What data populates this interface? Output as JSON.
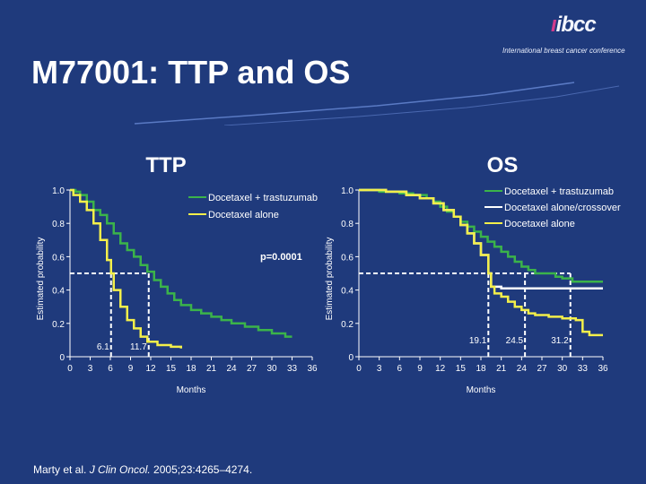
{
  "slide": {
    "title": "M77001: TTP and OS",
    "logo_text": "ibcc",
    "logo_subtitle": "International breast cancer conference",
    "citation_authors": "Marty et al. ",
    "citation_journal": "J Clin Oncol.",
    "citation_rest": " 2005;23:4265–4274."
  },
  "chart_data": [
    {
      "type": "line",
      "panel_title": "TTP",
      "xlabel": "Months",
      "ylabel": "Estimated probability",
      "xlim": [
        0,
        36
      ],
      "ylim": [
        0,
        1.0
      ],
      "x_ticks": [
        0,
        3,
        6,
        9,
        12,
        15,
        18,
        21,
        24,
        27,
        30,
        33,
        36
      ],
      "y_ticks": [
        {
          "v": 0,
          "label": "0"
        },
        {
          "v": 0.2,
          "label": "0.2"
        },
        {
          "v": 0.4,
          "label": "0.4"
        },
        {
          "v": 0.6,
          "label": "0.6"
        },
        {
          "v": 0.8,
          "label": "0.8"
        },
        {
          "v": 1.0,
          "label": "1.0"
        }
      ],
      "annotation": "p=0.0001",
      "medians": [
        {
          "x": 6.1,
          "label": "6.1"
        },
        {
          "x": 11.7,
          "label": "11.7"
        }
      ],
      "legend_position": "top-right",
      "series": [
        {
          "name": "Docetaxel + trastuzumab",
          "color": "#3bb34a",
          "points": [
            [
              0,
              1.0
            ],
            [
              0.8,
              0.99
            ],
            [
              1.5,
              0.97
            ],
            [
              2.5,
              0.93
            ],
            [
              3.5,
              0.88
            ],
            [
              4.5,
              0.85
            ],
            [
              5.5,
              0.8
            ],
            [
              6.5,
              0.74
            ],
            [
              7.5,
              0.68
            ],
            [
              8.5,
              0.64
            ],
            [
              9.5,
              0.6
            ],
            [
              10.5,
              0.55
            ],
            [
              11.5,
              0.51
            ],
            [
              12.5,
              0.46
            ],
            [
              13.5,
              0.42
            ],
            [
              14.5,
              0.38
            ],
            [
              15.5,
              0.34
            ],
            [
              16.5,
              0.31
            ],
            [
              18,
              0.28
            ],
            [
              19.5,
              0.26
            ],
            [
              21,
              0.24
            ],
            [
              22.5,
              0.22
            ],
            [
              24,
              0.2
            ],
            [
              26,
              0.18
            ],
            [
              28,
              0.16
            ],
            [
              30,
              0.14
            ],
            [
              32,
              0.12
            ],
            [
              33,
              0.12
            ]
          ]
        },
        {
          "name": "Docetaxel alone",
          "color": "#f3ef4a",
          "points": [
            [
              0,
              1.0
            ],
            [
              0.5,
              0.97
            ],
            [
              1.5,
              0.93
            ],
            [
              2.5,
              0.88
            ],
            [
              3.5,
              0.8
            ],
            [
              4.5,
              0.7
            ],
            [
              5.5,
              0.58
            ],
            [
              6.1,
              0.5
            ],
            [
              6.5,
              0.4
            ],
            [
              7.5,
              0.3
            ],
            [
              8.5,
              0.22
            ],
            [
              9.5,
              0.17
            ],
            [
              10.5,
              0.12
            ],
            [
              11.5,
              0.09
            ],
            [
              13,
              0.07
            ],
            [
              15,
              0.06
            ],
            [
              16.5,
              0.05
            ]
          ]
        }
      ]
    },
    {
      "type": "line",
      "panel_title": "OS",
      "xlabel": "Months",
      "ylabel": "Estimated probability",
      "xlim": [
        0,
        36
      ],
      "ylim": [
        0,
        1.0
      ],
      "x_ticks": [
        0,
        3,
        6,
        9,
        12,
        15,
        18,
        21,
        24,
        27,
        30,
        33,
        36
      ],
      "y_ticks": [
        {
          "v": 0,
          "label": "0"
        },
        {
          "v": 0.2,
          "label": "0.2"
        },
        {
          "v": 0.4,
          "label": "0.4"
        },
        {
          "v": 0.6,
          "label": "0.6"
        },
        {
          "v": 0.8,
          "label": "0.8"
        },
        {
          "v": 1.0,
          "label": "1.0"
        }
      ],
      "medians": [
        {
          "x": 19.1,
          "label": "19.1"
        },
        {
          "x": 24.5,
          "label": "24.5"
        },
        {
          "x": 31.2,
          "label": "31.2"
        }
      ],
      "legend_position": "top-right",
      "series": [
        {
          "name": "Docetaxel + trastuzumab",
          "color": "#3bb34a",
          "points": [
            [
              0,
              1.0
            ],
            [
              3,
              0.99
            ],
            [
              6,
              0.98
            ],
            [
              8,
              0.97
            ],
            [
              10,
              0.95
            ],
            [
              11,
              0.93
            ],
            [
              12,
              0.9
            ],
            [
              13,
              0.87
            ],
            [
              14,
              0.84
            ],
            [
              15,
              0.81
            ],
            [
              16,
              0.78
            ],
            [
              17,
              0.75
            ],
            [
              18,
              0.72
            ],
            [
              19,
              0.69
            ],
            [
              20,
              0.66
            ],
            [
              21,
              0.63
            ],
            [
              22,
              0.6
            ],
            [
              23,
              0.57
            ],
            [
              24,
              0.54
            ],
            [
              25,
              0.52
            ],
            [
              26,
              0.5
            ],
            [
              28,
              0.5
            ],
            [
              29,
              0.48
            ],
            [
              30,
              0.47
            ],
            [
              31.2,
              0.47
            ],
            [
              31.5,
              0.45
            ],
            [
              36,
              0.45
            ]
          ]
        },
        {
          "name": "Docetaxel alone/crossover",
          "color": "#ffffff",
          "points": [
            [
              0,
              1.0
            ],
            [
              4,
              0.99
            ],
            [
              7,
              0.97
            ],
            [
              9,
              0.95
            ],
            [
              11,
              0.92
            ],
            [
              12.5,
              0.88
            ],
            [
              14,
              0.84
            ],
            [
              15,
              0.79
            ],
            [
              16,
              0.74
            ],
            [
              17,
              0.68
            ],
            [
              18,
              0.61
            ],
            [
              19.1,
              0.5
            ],
            [
              19.5,
              0.42
            ],
            [
              21,
              0.41
            ],
            [
              24,
              0.41
            ],
            [
              28,
              0.41
            ],
            [
              32,
              0.41
            ],
            [
              36,
              0.41
            ]
          ]
        },
        {
          "name": "Docetaxel alone",
          "color": "#f3ef4a",
          "points": [
            [
              0,
              1.0
            ],
            [
              4,
              0.99
            ],
            [
              7,
              0.97
            ],
            [
              9,
              0.95
            ],
            [
              11,
              0.92
            ],
            [
              12.5,
              0.88
            ],
            [
              14,
              0.84
            ],
            [
              15,
              0.79
            ],
            [
              16,
              0.74
            ],
            [
              17,
              0.68
            ],
            [
              18,
              0.61
            ],
            [
              19.1,
              0.5
            ],
            [
              19.5,
              0.42
            ],
            [
              20,
              0.38
            ],
            [
              21,
              0.36
            ],
            [
              22,
              0.33
            ],
            [
              23,
              0.3
            ],
            [
              24,
              0.28
            ],
            [
              25,
              0.26
            ],
            [
              26,
              0.25
            ],
            [
              28,
              0.24
            ],
            [
              30,
              0.23
            ],
            [
              32,
              0.22
            ],
            [
              33,
              0.15
            ],
            [
              34,
              0.13
            ],
            [
              36,
              0.13
            ]
          ]
        }
      ]
    }
  ]
}
